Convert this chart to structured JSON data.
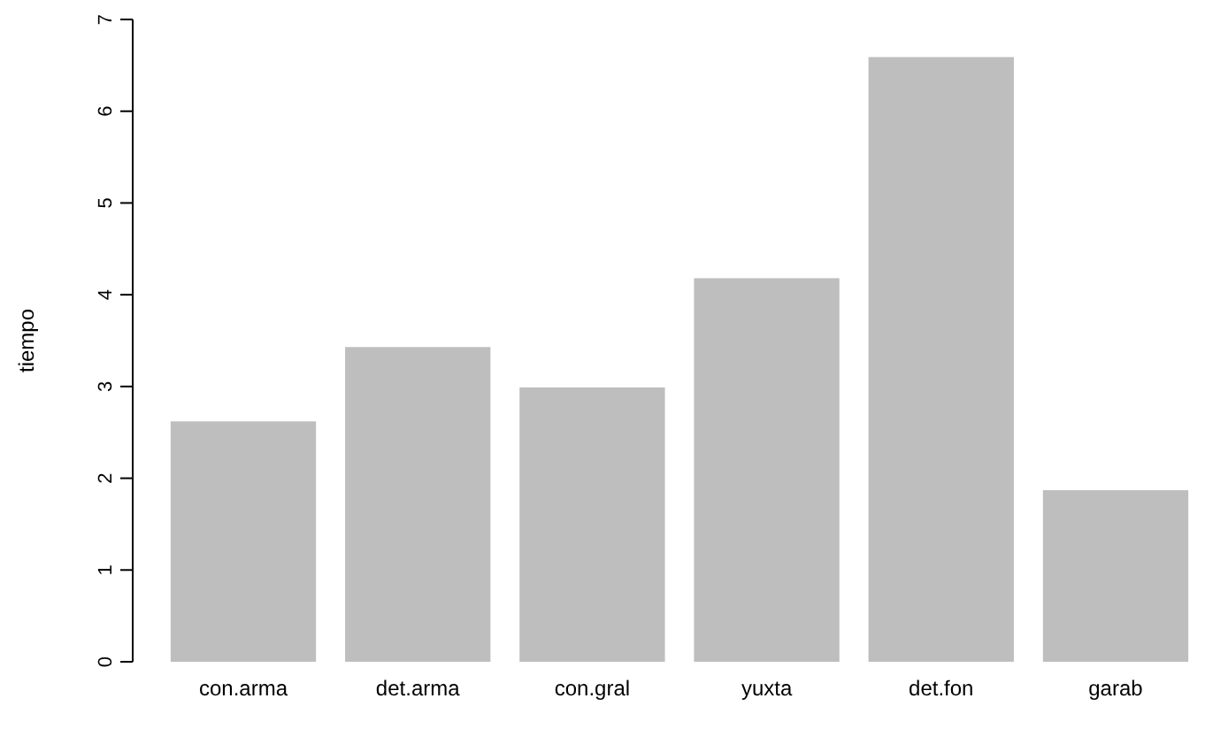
{
  "chart_data": {
    "type": "bar",
    "ylabel": "tiempo",
    "categories": [
      "con.arma",
      "det.arma",
      "con.gral",
      "yuxta",
      "det.fon",
      "garab"
    ],
    "values": [
      2.62,
      3.43,
      2.99,
      4.18,
      6.59,
      1.87
    ],
    "color": "#bebebe",
    "ylim": [
      0,
      7
    ],
    "yticks": [
      0,
      1,
      2,
      3,
      4,
      5,
      6,
      7
    ],
    "grid": false
  }
}
